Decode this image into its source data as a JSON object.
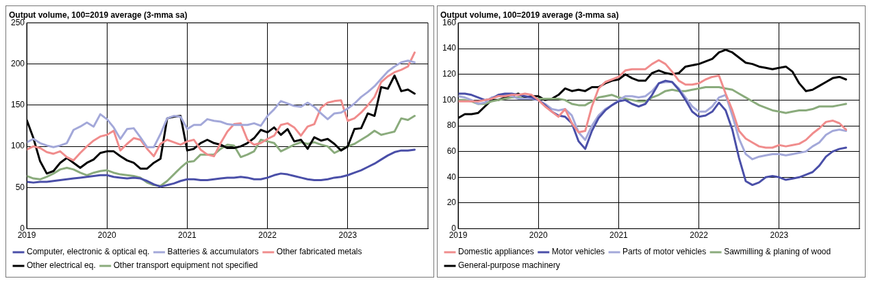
{
  "chart_data": [
    {
      "type": "line",
      "title": "Output volume, 100=2019 average (3-mma sa)",
      "x": [
        "2019-01",
        "2019-02",
        "2019-03",
        "2019-04",
        "2019-05",
        "2019-06",
        "2019-07",
        "2019-08",
        "2019-09",
        "2019-10",
        "2019-11",
        "2019-12",
        "2020-01",
        "2020-02",
        "2020-03",
        "2020-04",
        "2020-05",
        "2020-06",
        "2020-07",
        "2020-08",
        "2020-09",
        "2020-10",
        "2020-11",
        "2020-12",
        "2021-01",
        "2021-02",
        "2021-03",
        "2021-04",
        "2021-05",
        "2021-06",
        "2021-07",
        "2021-08",
        "2021-09",
        "2021-10",
        "2021-11",
        "2021-12",
        "2022-01",
        "2022-02",
        "2022-03",
        "2022-04",
        "2022-05",
        "2022-06",
        "2022-07",
        "2022-08",
        "2022-09",
        "2022-10",
        "2022-11",
        "2022-12",
        "2023-01",
        "2023-02",
        "2023-03",
        "2023-04",
        "2023-05",
        "2023-06",
        "2023-07",
        "2023-08",
        "2023-09",
        "2023-10",
        "2023-11"
      ],
      "xlim": [
        "2019-01",
        "2024-01"
      ],
      "xticks": [
        {
          "value": "2019-01",
          "label": "2019"
        },
        {
          "value": "2020-01",
          "label": "2020"
        },
        {
          "value": "2021-01",
          "label": "2021"
        },
        {
          "value": "2022-01",
          "label": "2022"
        },
        {
          "value": "2023-01",
          "label": "2023"
        }
      ],
      "ylim": [
        0,
        250
      ],
      "yticks": [
        0,
        50,
        100,
        150,
        200,
        250
      ],
      "grid": true,
      "legend": "bottom",
      "marker": "none",
      "series": [
        {
          "name": "Computer, electronic & optical eq.",
          "color": "#4a4fa8",
          "values": [
            57,
            56,
            57,
            57,
            58,
            59,
            60,
            61,
            62,
            63,
            64,
            65,
            65,
            63,
            62,
            61,
            62,
            61,
            58,
            54,
            51,
            53,
            55,
            58,
            60,
            60,
            59,
            59,
            60,
            61,
            62,
            62,
            63,
            62,
            60,
            60,
            62,
            65,
            67,
            66,
            64,
            62,
            60,
            59,
            59,
            60,
            62,
            63,
            65,
            68,
            71,
            75,
            79,
            84,
            89,
            93,
            95,
            95,
            96
          ]
        },
        {
          "name": "Batteries & accumulators",
          "color": "#a3a8d9",
          "values": [
            105,
            109,
            104,
            101,
            99,
            101,
            104,
            120,
            124,
            129,
            124,
            139,
            133,
            123,
            109,
            121,
            122,
            111,
            99,
            99,
            115,
            134,
            137,
            136,
            121,
            126,
            126,
            133,
            131,
            130,
            127,
            126,
            126,
            126,
            128,
            125,
            137,
            145,
            155,
            152,
            149,
            148,
            153,
            148,
            140,
            133,
            140,
            141,
            146,
            152,
            160,
            166,
            173,
            182,
            191,
            197,
            202,
            204,
            202
          ]
        },
        {
          "name": "Other fabricated metals",
          "color": "#f08c8c",
          "values": [
            96,
            100,
            98,
            93,
            91,
            94,
            87,
            83,
            92,
            100,
            107,
            112,
            114,
            119,
            95,
            103,
            110,
            108,
            97,
            88,
            103,
            108,
            105,
            102,
            106,
            108,
            96,
            90,
            88,
            104,
            118,
            127,
            128,
            108,
            102,
            104,
            109,
            113,
            126,
            128,
            123,
            113,
            124,
            127,
            147,
            153,
            155,
            156,
            131,
            134,
            141,
            150,
            160,
            178,
            185,
            190,
            193,
            197,
            214
          ]
        },
        {
          "name": "Other electrical eq.",
          "color": "#000000",
          "values": [
            132,
            110,
            82,
            67,
            70,
            80,
            86,
            80,
            74,
            80,
            84,
            92,
            94,
            94,
            88,
            83,
            80,
            73,
            73,
            80,
            85,
            134,
            136,
            137,
            95,
            97,
            104,
            108,
            104,
            102,
            98,
            98,
            100,
            104,
            110,
            120,
            117,
            123,
            114,
            121,
            106,
            108,
            97,
            111,
            107,
            109,
            103,
            95,
            100,
            121,
            122,
            140,
            137,
            172,
            170,
            186,
            167,
            169,
            164
          ]
        },
        {
          "name": "Other transport equipment not specified",
          "color": "#8aab7c",
          "values": [
            64,
            61,
            60,
            63,
            67,
            72,
            74,
            72,
            68,
            65,
            68,
            70,
            71,
            68,
            66,
            65,
            64,
            62,
            56,
            53,
            52,
            58,
            66,
            74,
            81,
            82,
            90,
            90,
            90,
            97,
            102,
            101,
            87,
            90,
            94,
            108,
            106,
            104,
            94,
            98,
            102,
            105,
            103,
            105,
            102,
            100,
            92,
            96,
            100,
            103,
            108,
            113,
            119,
            114,
            116,
            118,
            134,
            132,
            137
          ]
        }
      ]
    },
    {
      "type": "line",
      "title": "Output volume, 100=2019 average (3-mma sa)",
      "x": [
        "2019-01",
        "2019-02",
        "2019-03",
        "2019-04",
        "2019-05",
        "2019-06",
        "2019-07",
        "2019-08",
        "2019-09",
        "2019-10",
        "2019-11",
        "2019-12",
        "2020-01",
        "2020-02",
        "2020-03",
        "2020-04",
        "2020-05",
        "2020-06",
        "2020-07",
        "2020-08",
        "2020-09",
        "2020-10",
        "2020-11",
        "2020-12",
        "2021-01",
        "2021-02",
        "2021-03",
        "2021-04",
        "2021-05",
        "2021-06",
        "2021-07",
        "2021-08",
        "2021-09",
        "2021-10",
        "2021-11",
        "2021-12",
        "2022-01",
        "2022-02",
        "2022-03",
        "2022-04",
        "2022-05",
        "2022-06",
        "2022-07",
        "2022-08",
        "2022-09",
        "2022-10",
        "2022-11",
        "2022-12",
        "2023-01",
        "2023-02",
        "2023-03",
        "2023-04",
        "2023-05",
        "2023-06",
        "2023-07",
        "2023-08",
        "2023-09",
        "2023-10",
        "2023-11"
      ],
      "xlim": [
        "2019-01",
        "2024-01"
      ],
      "xticks": [
        {
          "value": "2019-01",
          "label": "2019"
        },
        {
          "value": "2020-01",
          "label": "2020"
        },
        {
          "value": "2021-01",
          "label": "2021"
        },
        {
          "value": "2022-01",
          "label": "2022"
        },
        {
          "value": "2023-01",
          "label": "2023"
        }
      ],
      "ylim": [
        0,
        160
      ],
      "yticks": [
        0,
        20,
        40,
        60,
        80,
        100,
        120,
        140,
        160
      ],
      "grid": true,
      "legend": "bottom",
      "marker": "none",
      "series": [
        {
          "name": "Domestic appliances",
          "color": "#f08c8c",
          "values": [
            99,
            99,
            99,
            99,
            100,
            101,
            103,
            103,
            104,
            104,
            105,
            104,
            100,
            95,
            91,
            87,
            93,
            82,
            75,
            76,
            95,
            109,
            114,
            116,
            118,
            123,
            124,
            124,
            124,
            128,
            131,
            128,
            122,
            115,
            112,
            112,
            113,
            116,
            118,
            119,
            105,
            92,
            76,
            70,
            67,
            64,
            63,
            63,
            65,
            64,
            65,
            66,
            69,
            74,
            78,
            83,
            84,
            82,
            77
          ]
        },
        {
          "name": "Motor vehicles",
          "color": "#4a4fa8",
          "values": [
            105,
            105,
            104,
            102,
            100,
            101,
            104,
            105,
            105,
            104,
            103,
            102,
            100,
            96,
            91,
            88,
            87,
            82,
            68,
            62,
            76,
            86,
            92,
            96,
            99,
            100,
            97,
            95,
            97,
            104,
            113,
            115,
            114,
            108,
            100,
            91,
            87,
            88,
            91,
            98,
            92,
            77,
            55,
            37,
            34,
            36,
            40,
            41,
            40,
            38,
            39,
            40,
            42,
            44,
            49,
            56,
            60,
            62,
            63
          ]
        },
        {
          "name": "Parts of motor vehicles",
          "color": "#a3a8d9",
          "values": [
            103,
            102,
            100,
            97,
            98,
            102,
            103,
            104,
            103,
            101,
            101,
            101,
            100,
            97,
            93,
            92,
            93,
            88,
            75,
            69,
            80,
            88,
            93,
            96,
            100,
            103,
            103,
            102,
            103,
            107,
            113,
            114,
            114,
            109,
            102,
            95,
            91,
            91,
            95,
            102,
            104,
            88,
            70,
            58,
            54,
            56,
            57,
            58,
            58,
            57,
            58,
            59,
            60,
            64,
            67,
            73,
            76,
            77,
            76
          ]
        },
        {
          "name": "Sawmilling & planing of wood",
          "color": "#8aab7c",
          "values": [
            100,
            100,
            99,
            97,
            97,
            99,
            100,
            101,
            102,
            102,
            101,
            101,
            101,
            101,
            101,
            101,
            100,
            97,
            96,
            96,
            99,
            102,
            103,
            104,
            102,
            101,
            100,
            99,
            99,
            102,
            104,
            107,
            108,
            107,
            107,
            108,
            109,
            110,
            110,
            110,
            109,
            108,
            105,
            102,
            99,
            96,
            94,
            92,
            91,
            90,
            91,
            92,
            92,
            93,
            95,
            95,
            95,
            96,
            97
          ]
        },
        {
          "name": "General-purpose machinery",
          "color": "#000000",
          "values": [
            86,
            89,
            89,
            90,
            95,
            100,
            100,
            102,
            103,
            105,
            102,
            103,
            103,
            100,
            101,
            104,
            109,
            107,
            108,
            107,
            110,
            110,
            113,
            115,
            116,
            120,
            117,
            115,
            115,
            121,
            123,
            121,
            120,
            121,
            126,
            127,
            128,
            130,
            132,
            137,
            139,
            137,
            133,
            129,
            128,
            126,
            125,
            124,
            125,
            126,
            122,
            113,
            107,
            108,
            111,
            114,
            117,
            118,
            116
          ]
        }
      ]
    }
  ]
}
